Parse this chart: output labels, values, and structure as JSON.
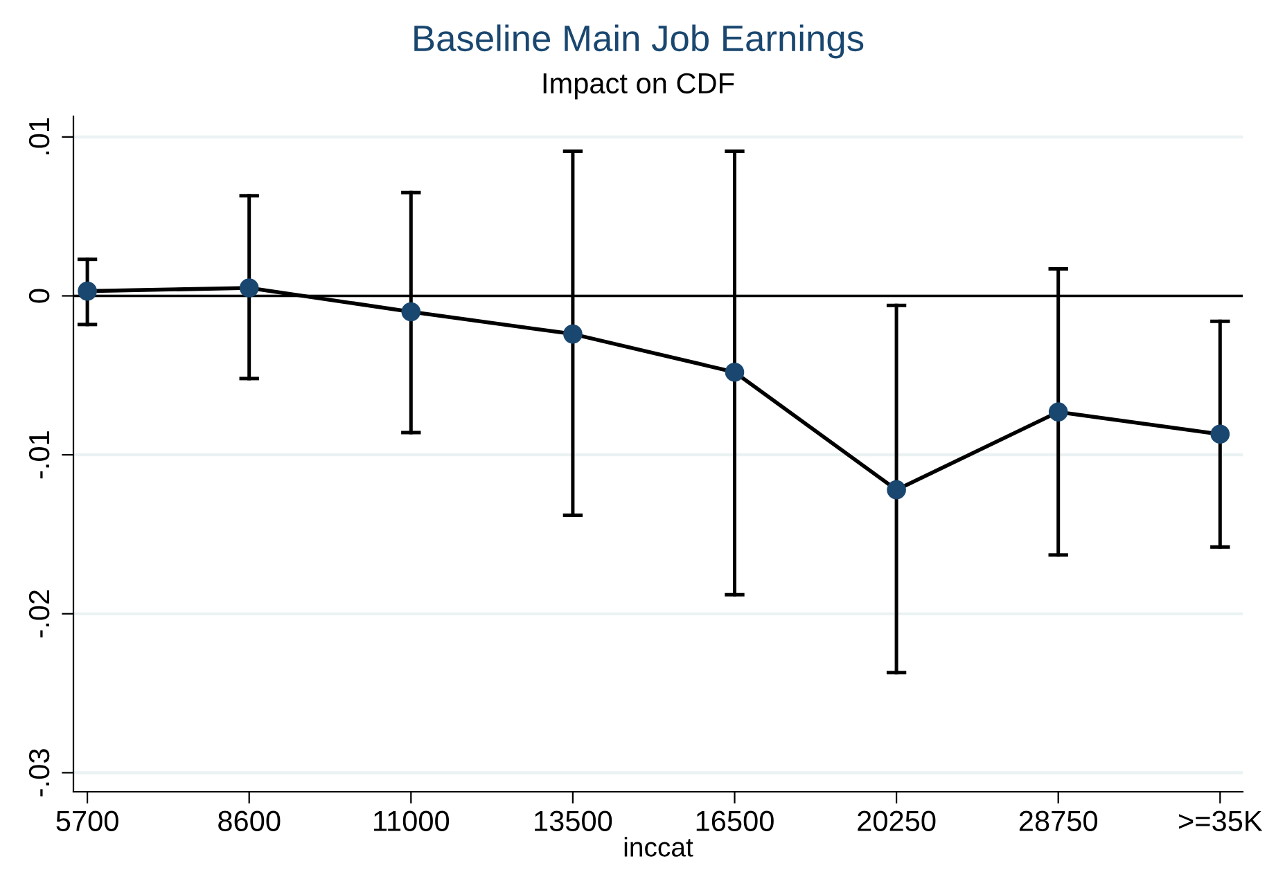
{
  "chart_data": {
    "type": "line",
    "title": "Baseline Main Job Earnings",
    "subtitle": "Impact on CDF",
    "xlabel": "inccat",
    "categories": [
      "5700",
      "8600",
      "11000",
      "13500",
      "16500",
      "20250",
      "28750",
      ">=35K"
    ],
    "series": [
      {
        "color": "#1a476f",
        "values": [
          0.0003,
          0.0005,
          -0.001,
          -0.0024,
          -0.0048,
          -0.0122,
          -0.0073,
          -0.0087
        ],
        "errors": [
          [
            -0.0018,
            0.0023
          ],
          [
            -0.0052,
            0.0063
          ],
          [
            -0.0086,
            0.0065
          ],
          [
            -0.0138,
            0.0091
          ],
          [
            -0.0188,
            0.0091
          ],
          [
            -0.0237,
            -0.0006
          ],
          [
            -0.0163,
            0.0017
          ],
          [
            -0.0158,
            -0.0016
          ]
        ]
      }
    ],
    "ylim": [
      -0.0312,
      0.0113
    ],
    "yticks": [
      {
        "value": -0.03,
        "label": "-.03"
      },
      {
        "value": -0.02,
        "label": "-.02"
      },
      {
        "value": -0.01,
        "label": "-.01"
      },
      {
        "value": 0,
        "label": "0"
      },
      {
        "value": 0.01,
        "label": ".01"
      }
    ],
    "ref_lines": [
      {
        "axis": "y",
        "value": 0,
        "color": "#000000"
      }
    ],
    "grid": "y",
    "marker": "circle",
    "line_style": "solid"
  }
}
